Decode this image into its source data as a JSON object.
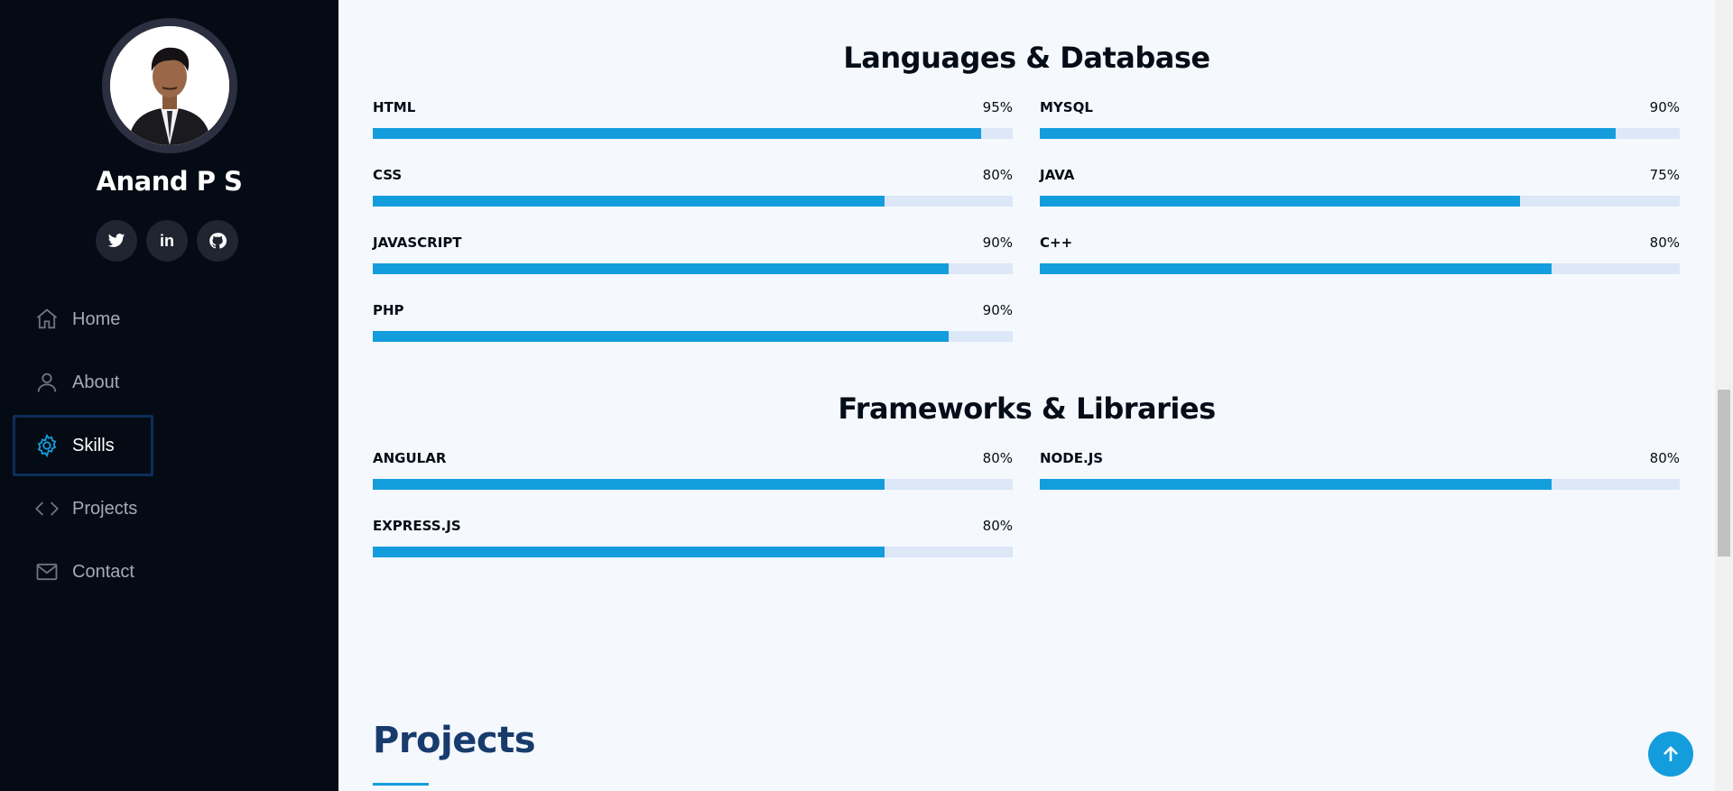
{
  "profile": {
    "name": "Anand P S",
    "avatar_alt": "profile-photo"
  },
  "socials": [
    {
      "icon": "twitter-icon"
    },
    {
      "icon": "linkedin-icon",
      "text": "in"
    },
    {
      "icon": "github-icon"
    }
  ],
  "nav": {
    "items": [
      {
        "label": "Home",
        "icon": "home-icon"
      },
      {
        "label": "About",
        "icon": "person-icon"
      },
      {
        "label": "Skills",
        "icon": "gear-icon",
        "active": true
      },
      {
        "label": "Projects",
        "icon": "code-icon"
      },
      {
        "label": "Contact",
        "icon": "envelope-icon"
      }
    ]
  },
  "sections": {
    "languages": {
      "title": "Languages & Database",
      "skills": [
        {
          "name": "HTML",
          "percent_label": "95%",
          "level": 95
        },
        {
          "name": "MYSQL",
          "percent_label": "90%",
          "level": 90
        },
        {
          "name": "CSS",
          "percent_label": "80%",
          "level": 80
        },
        {
          "name": "JAVA",
          "percent_label": "75%",
          "level": 75
        },
        {
          "name": "JAVASCRIPT",
          "percent_label": "90%",
          "level": 90
        },
        {
          "name": "C++",
          "percent_label": "80%",
          "level": 80
        },
        {
          "name": "PHP",
          "percent_label": "90%",
          "level": 90
        }
      ]
    },
    "frameworks": {
      "title": "Frameworks & Libraries",
      "skills": [
        {
          "name": "ANGULAR",
          "percent_label": "80%",
          "level": 80
        },
        {
          "name": "NODE.JS",
          "percent_label": "80%",
          "level": 80
        },
        {
          "name": "EXPRESS.JS",
          "percent_label": "80%",
          "level": 80
        }
      ]
    }
  },
  "projects": {
    "title": "Projects"
  },
  "colors": {
    "accent": "#149ddd",
    "sidebar_bg": "#040b14",
    "page_bg": "#f5f8fd",
    "heading": "#173b6c",
    "bar_track": "#dce8f8"
  }
}
